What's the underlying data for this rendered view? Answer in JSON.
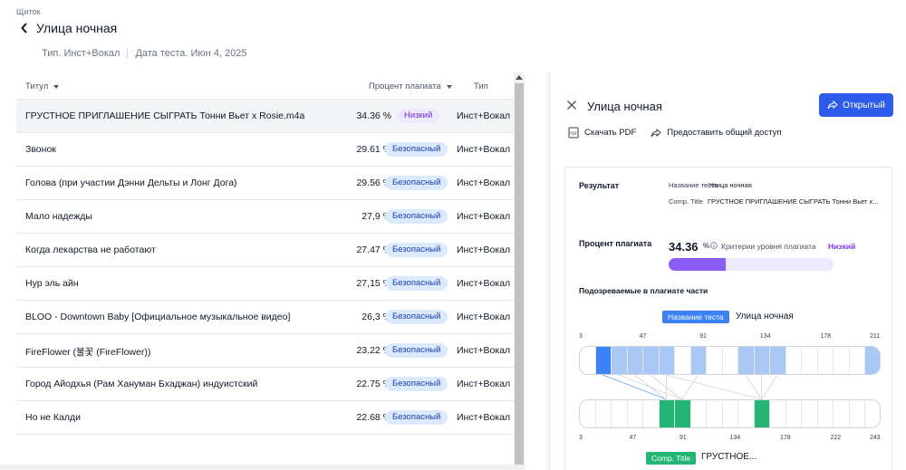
{
  "breadcrumb": "Щиток",
  "page_title": "Улица ночная",
  "meta": {
    "type": "Тип. Инст+Вокал",
    "date": "Дата теста. Июн 4, 2025"
  },
  "table": {
    "headers": {
      "title": "Титул",
      "percent": "Процент плагиата",
      "type": "Тип"
    },
    "rows": [
      {
        "name": "ГРУСТНОЕ ПРИГЛАШЕНИЕ СЫГРАТЬ Тонни Вьет x Rosie.m4a",
        "percent": "34.36 %",
        "badge": "Низкий",
        "type": "Инст+Вокал"
      },
      {
        "name": "Звонок",
        "percent": "29.61 %",
        "badge": "Безопасный",
        "type": "Инст+Вокал"
      },
      {
        "name": "Голова (при участии Дэнни Дельты и Лонг Дога)",
        "percent": "29.56 %",
        "badge": "Безопасный",
        "type": "Инст+Вокал"
      },
      {
        "name": "Мало надежды",
        "percent": "27,9 %",
        "badge": "Безопасный",
        "type": "Инст+Вокал"
      },
      {
        "name": "Когда лекарства не работают",
        "percent": "27.47 %",
        "badge": "Безопасный",
        "type": "Инст+Вокал"
      },
      {
        "name": "Нур эль айн",
        "percent": "27,15 %",
        "badge": "Безопасный",
        "type": "Инст+Вокал"
      },
      {
        "name": "BLOO - Downtown Baby [Официальное музыкальное видео]",
        "percent": "26,3 %",
        "badge": "Безопасный",
        "type": "Инст+Вокал"
      },
      {
        "name": "FireFlower (불꽃 (FireFlower))",
        "percent": "23.22 %",
        "badge": "Безопасный",
        "type": "Инст+Вокал"
      },
      {
        "name": "Город Айодхья (Рам Хануман Бхаджан) индуистский",
        "percent": "22.75 %",
        "badge": "Безопасный",
        "type": "Инст+Вокал"
      },
      {
        "name": "Но не Калди",
        "percent": "22.68 %",
        "badge": "Безопасный",
        "type": "Инст+Вокал"
      }
    ]
  },
  "panel": {
    "title": "Улица ночная",
    "open_button": "Открытый",
    "download_pdf": "Скачать PDF",
    "share": "Предоставить общий доступ",
    "result_label": "Результат",
    "test_name_label": "Название теста",
    "test_name_value": "Улица ночная",
    "comp_title_label": "Comp. Title",
    "comp_title_value": "ГРУСТНОЕ ПРИГЛАШЕНИЕ СЫГРАТЬ Тонни Вьет x...",
    "percent_label": "Процент плагиата",
    "percent_value": "34.36",
    "percent_unit": "%",
    "percent_fraction": 0.3436,
    "criteria_label": "Критерии уровня плагиата",
    "criteria_value": "Низкий",
    "suspected_label": "Подозреваемые в плагиате части",
    "top_tag": "Название теста",
    "top_tag_value": "Улица ночная",
    "top_ticks": [
      "3",
      "47",
      "91",
      "134",
      "178",
      "211"
    ],
    "bottom_ticks": [
      "3",
      "47",
      "91",
      "134",
      "178",
      "222",
      "243"
    ],
    "bottom_tag": "Comp. Title",
    "bottom_tag_value": "ГРУСТНОЕ..."
  },
  "colors": {
    "accent": "#2f5bea",
    "safe_badge": "#dbeafe",
    "low_badge": "#ede9fe",
    "progress_fill": "#8b5cf6",
    "match_green": "#22b573",
    "match_blue_dark": "#3b82f6",
    "match_blue_light": "#a9c8f6"
  }
}
